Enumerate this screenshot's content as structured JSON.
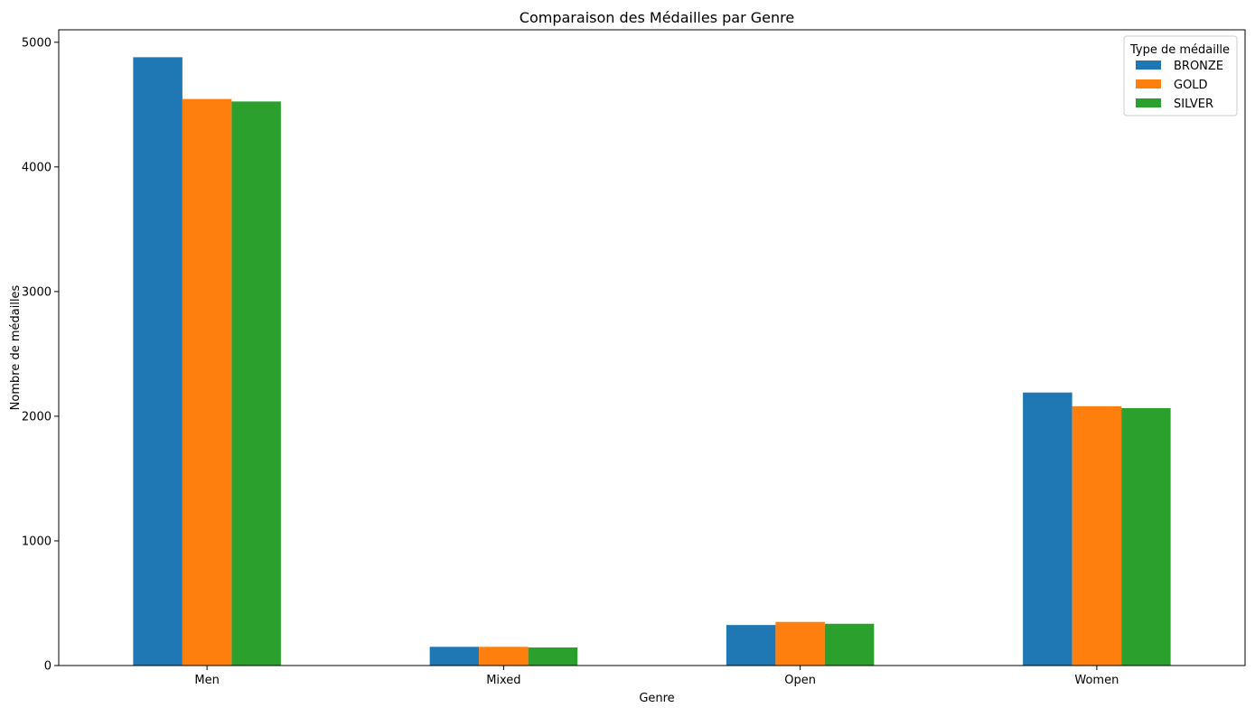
{
  "chart_data": {
    "type": "bar",
    "title": "Comparaison des Médailles par Genre",
    "xlabel": "Genre",
    "ylabel": "Nombre de médailles",
    "categories": [
      "Men",
      "Mixed",
      "Open",
      "Women"
    ],
    "series": [
      {
        "name": "BRONZE",
        "color": "#1f77b4",
        "values": [
          4880,
          150,
          325,
          2190
        ]
      },
      {
        "name": "GOLD",
        "color": "#ff7f0e",
        "values": [
          4545,
          150,
          350,
          2080
        ]
      },
      {
        "name": "SILVER",
        "color": "#2ca02c",
        "values": [
          4525,
          145,
          335,
          2065
        ]
      }
    ],
    "ylim": [
      0,
      5100
    ],
    "yticks": [
      0,
      1000,
      2000,
      3000,
      4000,
      5000
    ],
    "grid": false,
    "legend": {
      "title": "Type de médaille",
      "placement": "top-right"
    }
  }
}
